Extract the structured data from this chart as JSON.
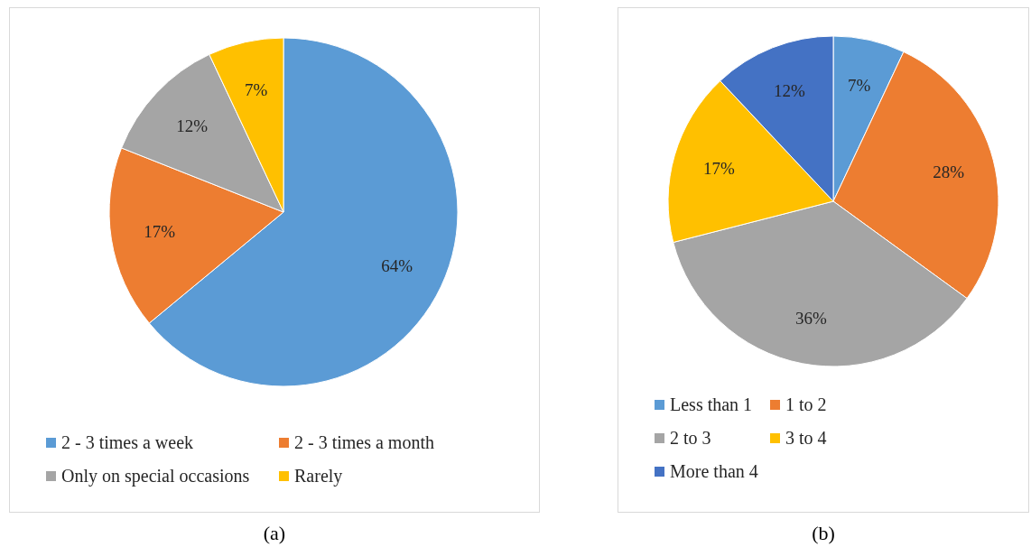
{
  "chart_data": [
    {
      "type": "pie",
      "categories": [
        "2 - 3 times a week",
        "2 - 3 times a month",
        "Only on special occasions",
        "Rarely"
      ],
      "values": [
        64,
        17,
        12,
        7
      ],
      "value_labels": [
        "64%",
        "17%",
        "12%",
        "7%"
      ],
      "colors": [
        "#5b9bd5",
        "#ed7d31",
        "#a5a5a5",
        "#ffc000"
      ],
      "legend": "bottom",
      "annotations": [
        "(a)"
      ]
    },
    {
      "type": "pie",
      "categories": [
        "Less than 1",
        "1 to 2",
        "2 to 3",
        "3 to 4",
        "More than 4"
      ],
      "values": [
        7,
        28,
        36,
        17,
        12
      ],
      "value_labels": [
        "7%",
        "28%",
        "36%",
        "17%",
        "12%"
      ],
      "colors": [
        "#5b9bd5",
        "#ed7d31",
        "#a5a5a5",
        "#ffc000",
        "#4472c4"
      ],
      "legend": "bottom",
      "annotations": [
        "(b)"
      ]
    }
  ]
}
